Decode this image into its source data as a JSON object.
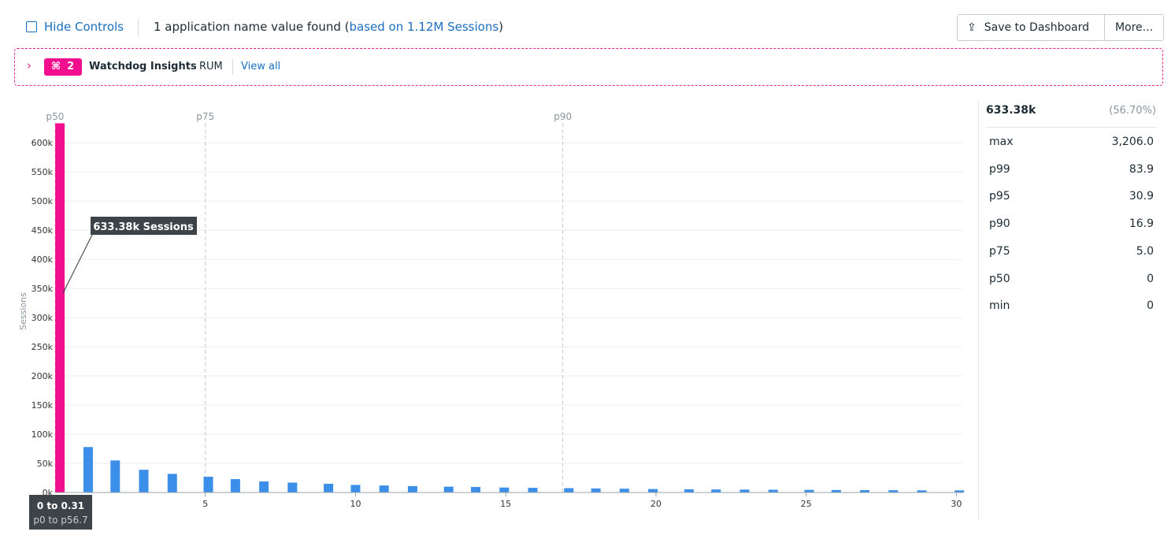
{
  "toolbar": {
    "hide_controls": "Hide Controls",
    "summary": "1 application name value found (",
    "summary_link": "based on 1.12M Sessions",
    "summary_end": ")",
    "save": "Save to Dashboard",
    "more": "More..."
  },
  "watchdog": {
    "count": "2",
    "title": "Watchdog Insights",
    "tag": "RUM",
    "view_all": "View all"
  },
  "chart_data": {
    "type": "bar",
    "y_label": "Sessions",
    "x": [
      0.16,
      1.1,
      2.0,
      2.95,
      3.9,
      5.1,
      6.0,
      6.95,
      7.9,
      9.1,
      10.0,
      10.95,
      11.9,
      13.1,
      14.0,
      14.95,
      15.9,
      17.1,
      18.0,
      18.95,
      19.9,
      21.1,
      22.0,
      22.95,
      23.9,
      25.1,
      26.0,
      26.95,
      27.9,
      28.85,
      30.1
    ],
    "values": [
      633380,
      78000,
      55000,
      39000,
      32000,
      27000,
      23000,
      19000,
      17000,
      15000,
      13000,
      12000,
      11000,
      10000,
      9500,
      8500,
      8000,
      7500,
      7000,
      6500,
      6000,
      5500,
      5200,
      5000,
      4800,
      4500,
      4300,
      4100,
      3900,
      3700,
      3600
    ],
    "colors": [
      "#f20f8f",
      "#3c8fe8",
      "#3c8fe8",
      "#3c8fe8",
      "#3c8fe8",
      "#3c8fe8",
      "#3c8fe8",
      "#3c8fe8",
      "#3c8fe8",
      "#3c8fe8",
      "#3c8fe8",
      "#3c8fe8",
      "#3c8fe8",
      "#3c8fe8",
      "#3c8fe8",
      "#3c8fe8",
      "#3c8fe8",
      "#3c8fe8",
      "#3c8fe8",
      "#3c8fe8",
      "#3c8fe8",
      "#3c8fe8",
      "#3c8fe8",
      "#3c8fe8",
      "#3c8fe8",
      "#3c8fe8",
      "#3c8fe8",
      "#3c8fe8",
      "#3c8fe8",
      "#3c8fe8",
      "#3c8fe8"
    ],
    "xlim": [
      0,
      30.2
    ],
    "xticks": [
      5,
      10,
      15,
      20,
      25,
      30
    ],
    "ylim": [
      0,
      634000
    ],
    "yticks": [
      {
        "value": 0,
        "label": "0k"
      },
      {
        "value": 50000,
        "label": "50k"
      },
      {
        "value": 100000,
        "label": "100k"
      },
      {
        "value": 150000,
        "label": "150k"
      },
      {
        "value": 200000,
        "label": "200k"
      },
      {
        "value": 250000,
        "label": "250k"
      },
      {
        "value": 300000,
        "label": "300k"
      },
      {
        "value": 350000,
        "label": "350k"
      },
      {
        "value": 400000,
        "label": "400k"
      },
      {
        "value": 450000,
        "label": "450k"
      },
      {
        "value": 500000,
        "label": "500k"
      },
      {
        "value": 550000,
        "label": "550k"
      },
      {
        "value": 600000,
        "label": "600k"
      }
    ],
    "grid": true,
    "markers": [
      {
        "label": "p50",
        "x": 0
      },
      {
        "label": "p75",
        "x": 5
      },
      {
        "label": "p90",
        "x": 16.9
      }
    ],
    "annotations": {
      "hover": "633.38k Sessions",
      "range": "0 to 0.31",
      "percentile_range": "p0 to p56.7"
    }
  },
  "stats": {
    "header": [
      "633.38k",
      "(56.70%)"
    ],
    "rows": [
      [
        "max",
        "3,206.0"
      ],
      [
        "p99",
        "83.9"
      ],
      [
        "p95",
        "30.9"
      ],
      [
        "p90",
        "16.9"
      ],
      [
        "p75",
        "5.0"
      ],
      [
        "p50",
        "0"
      ],
      [
        "min",
        "0"
      ]
    ]
  }
}
